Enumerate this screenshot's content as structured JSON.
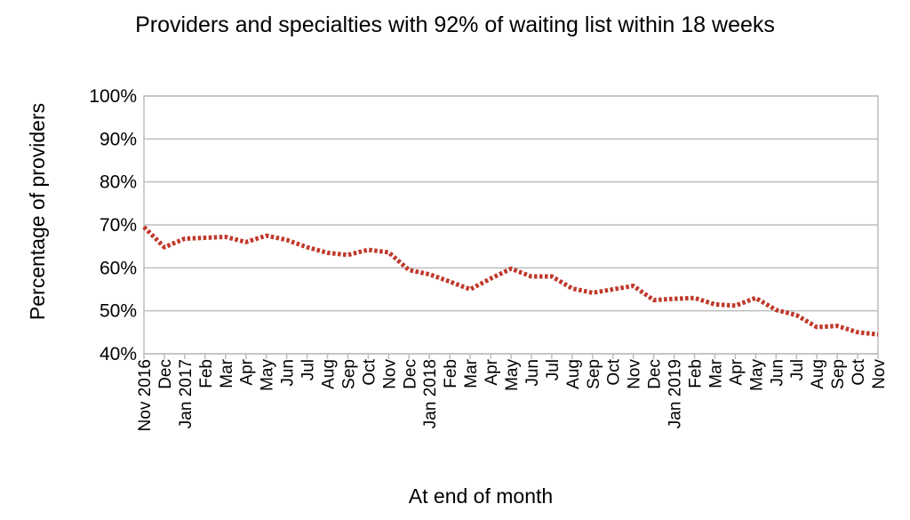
{
  "chart_data": {
    "type": "line",
    "title": "Providers and specialties with 92% of waiting list within 18 weeks",
    "xlabel": "At end of month",
    "ylabel": "Percentage of providers",
    "ylim": [
      40,
      100
    ],
    "yticks": [
      "40%",
      "50%",
      "60%",
      "70%",
      "80%",
      "90%",
      "100%"
    ],
    "grid": true,
    "line_color": "#c0392b",
    "line_style": "dotted",
    "categories": [
      "Nov 2016",
      "Dec",
      "Jan 2017",
      "Feb",
      "Mar",
      "Apr",
      "May",
      "Jun",
      "Jul",
      "Aug",
      "Sep",
      "Oct",
      "Nov",
      "Dec",
      "Jan 2018",
      "Feb",
      "Mar",
      "Apr",
      "May",
      "Jun",
      "Jul",
      "Aug",
      "Sep",
      "Oct",
      "Nov",
      "Dec",
      "Jan 2019",
      "Feb",
      "Mar",
      "Apr",
      "May",
      "Jun",
      "Jul",
      "Aug",
      "Sep",
      "Oct",
      "Nov"
    ],
    "series": [
      {
        "values": [
          69.5,
          64.8,
          66.8,
          67.0,
          67.2,
          66.0,
          67.5,
          66.5,
          64.8,
          63.5,
          63.0,
          64.2,
          63.6,
          59.5,
          58.5,
          56.8,
          55.0,
          57.5,
          59.8,
          58.0,
          58.0,
          55.2,
          54.2,
          55.0,
          55.8,
          52.5,
          52.8,
          53.0,
          51.5,
          51.2,
          53.0,
          50.2,
          49.0,
          46.2,
          46.5,
          45.0,
          44.5
        ]
      }
    ]
  }
}
